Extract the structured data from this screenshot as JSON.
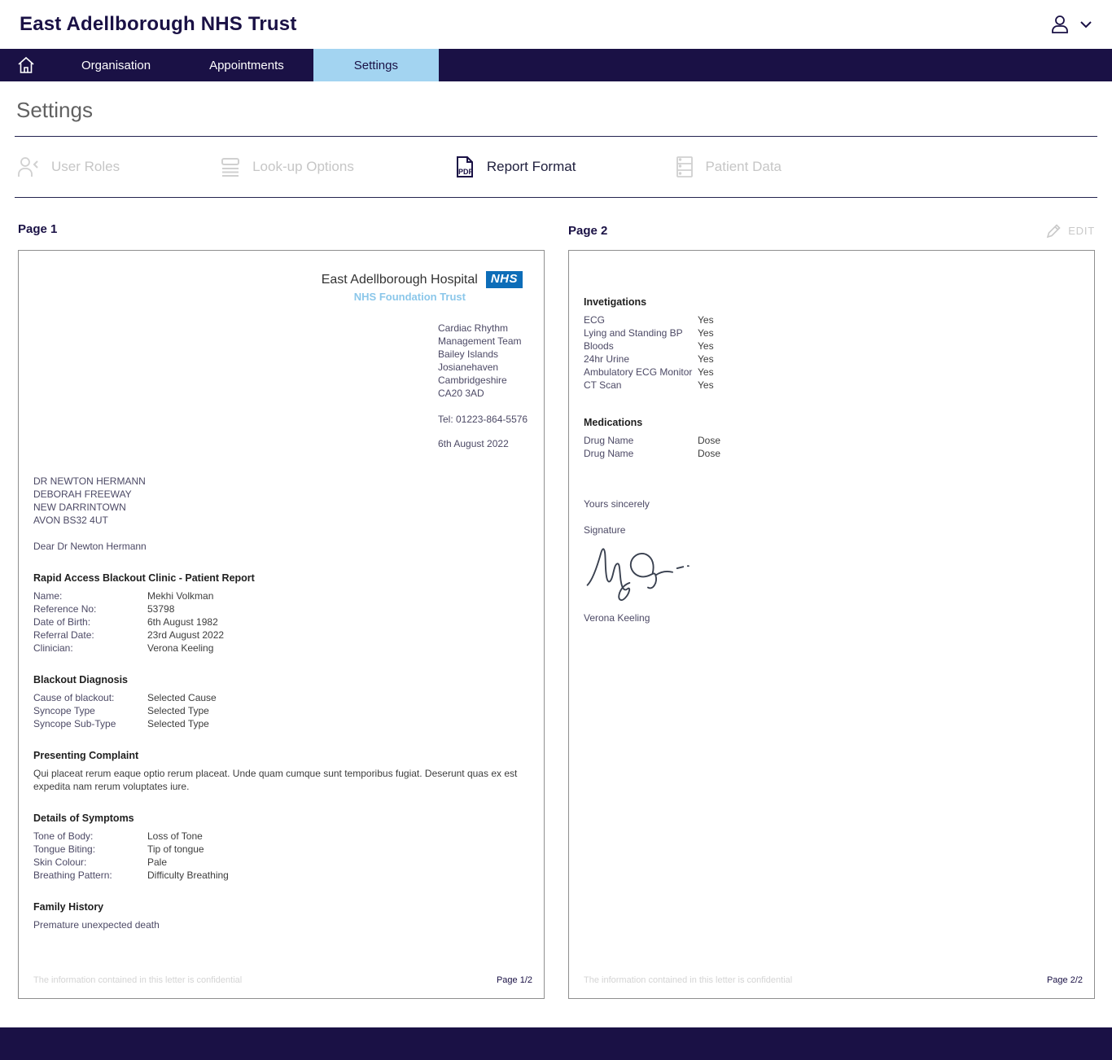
{
  "app": {
    "title": "East Adellborough NHS Trust",
    "nav": {
      "items": [
        {
          "label": "Organisation"
        },
        {
          "label": "Appointments"
        },
        {
          "label": "Settings"
        }
      ]
    },
    "page_title": "Settings",
    "subtabs": [
      {
        "label": "User Roles"
      },
      {
        "label": "Look-up Options"
      },
      {
        "label": "Report Format"
      },
      {
        "label": "Patient Data"
      }
    ],
    "edit_label": "EDIT"
  },
  "colors": {
    "navy": "#1a1145",
    "active_tab_blue": "#a3d4f1",
    "nhs_logo_blue": "#0d6db8",
    "trust_light_blue": "#8bc7ea",
    "disabled_gray": "#c6c6c6"
  },
  "preview": {
    "page1": {
      "label": "Page 1",
      "hospital_name": "East Adellborough Hospital",
      "nhs_logo": "NHS",
      "trust_line": "NHS Foundation Trust",
      "sender_address": [
        "Cardiac Rhythm",
        "Management Team",
        "Bailey Islands",
        "Josianehaven",
        "Cambridgeshire",
        "CA20 3AD"
      ],
      "tel": "Tel: 01223-864-5576",
      "date": "6th August 2022",
      "recipient": [
        "DR NEWTON HERMANN",
        "DEBORAH FREEWAY",
        "NEW DARRINTOWN",
        "AVON BS32 4UT"
      ],
      "salutation": "Dear Dr Newton Hermann",
      "report_heading": "Rapid Access Blackout Clinic - Patient Report",
      "patient_fields": [
        {
          "label": "Name:",
          "value": "Mekhi Volkman"
        },
        {
          "label": "Reference No:",
          "value": "53798"
        },
        {
          "label": "Date of Birth:",
          "value": "6th August 1982"
        },
        {
          "label": "Referral Date:",
          "value": "23rd August 2022"
        },
        {
          "label": "Clinician:",
          "value": "Verona Keeling"
        }
      ],
      "diagnosis_heading": "Blackout Diagnosis",
      "diagnosis_fields": [
        {
          "label": "Cause of blackout:",
          "value": "Selected Cause"
        },
        {
          "label": "Syncope Type",
          "value": "Selected Type"
        },
        {
          "label": "Syncope Sub-Type",
          "value": "Selected Type"
        }
      ],
      "complaint_heading": "Presenting Complaint",
      "complaint_text": "Qui placeat rerum eaque optio rerum placeat. Unde quam cumque sunt temporibus fugiat. Deserunt quas ex est expedita nam rerum voluptates iure.",
      "symptoms_heading": "Details of Symptoms",
      "symptoms_fields": [
        {
          "label": "Tone of Body:",
          "value": "Loss of Tone"
        },
        {
          "label": "Tongue Biting:",
          "value": "Tip of tongue"
        },
        {
          "label": "Skin Colour:",
          "value": "Pale"
        },
        {
          "label": "Breathing Pattern:",
          "value": "Difficulty Breathing"
        }
      ],
      "family_heading": "Family History",
      "family_text": "Premature unexpected death",
      "footer_confidential": "The information contained in this letter is confidential",
      "footer_page": "Page 1/2"
    },
    "page2": {
      "label": "Page 2",
      "investigations_heading": "Invetigations",
      "investigations": [
        {
          "label": "ECG",
          "value": "Yes"
        },
        {
          "label": "Lying and Standing BP",
          "value": "Yes"
        },
        {
          "label": "Bloods",
          "value": "Yes"
        },
        {
          "label": "24hr Urine",
          "value": "Yes"
        },
        {
          "label": "Ambulatory ECG Monitor",
          "value": "Yes"
        },
        {
          "label": "CT Scan",
          "value": "Yes"
        }
      ],
      "medications_heading": "Medications",
      "medications": [
        {
          "label": "Drug Name",
          "value": "Dose"
        },
        {
          "label": "Drug Name",
          "value": "Dose"
        }
      ],
      "closing": "Yours sincerely",
      "signature_label": "Signature",
      "signatory": "Verona Keeling",
      "footer_confidential": "The information contained in this letter is confidential",
      "footer_page": "Page 2/2"
    }
  }
}
